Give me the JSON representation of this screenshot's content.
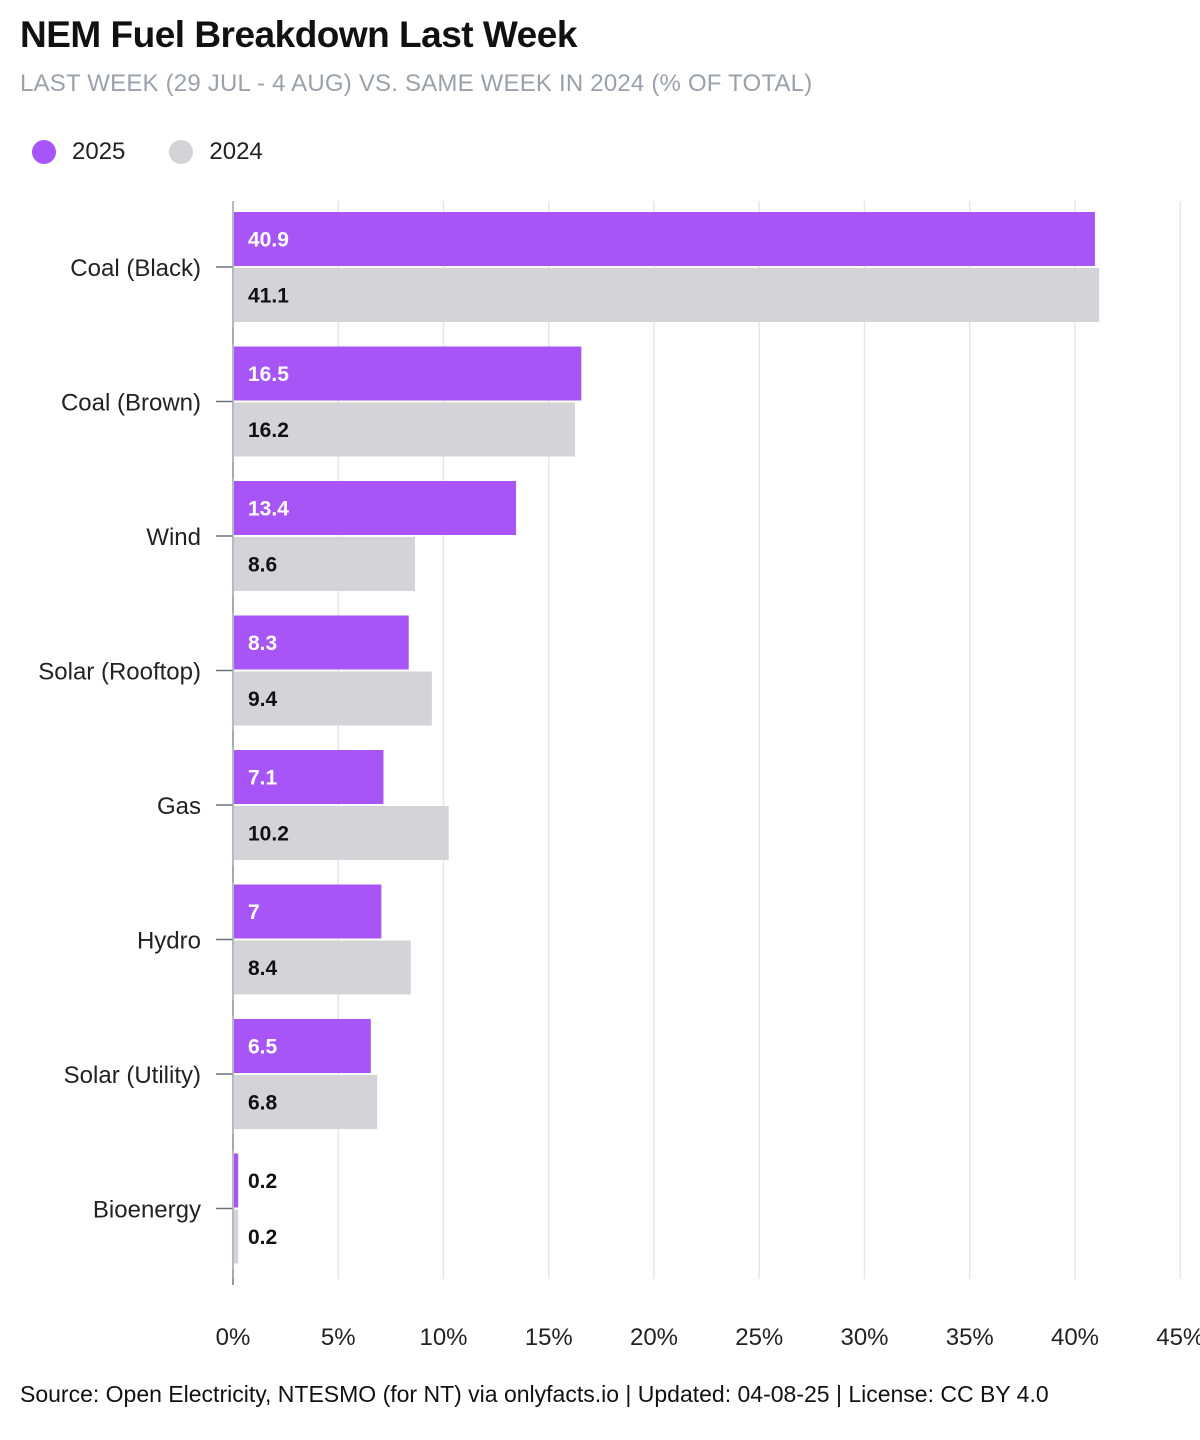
{
  "title": "NEM Fuel Breakdown Last Week",
  "subtitle": "LAST WEEK (29 JUL - 4 AUG) VS. SAME WEEK IN 2024 (% OF TOTAL)",
  "legend": [
    {
      "label": "2025",
      "color": "#a855f7"
    },
    {
      "label": "2024",
      "color": "#d4d4d8"
    }
  ],
  "footer": "Source: Open Electricity, NTESMO (for NT) via onlyfacts.io | Updated: 04-08-25 | License: CC BY 4.0",
  "chart_data": {
    "type": "bar",
    "orientation": "horizontal",
    "categories": [
      "Coal (Black)",
      "Coal (Brown)",
      "Wind",
      "Solar (Rooftop)",
      "Gas",
      "Hydro",
      "Solar (Utility)",
      "Bioenergy"
    ],
    "series": [
      {
        "name": "2025",
        "color": "#a855f7",
        "values": [
          40.9,
          16.5,
          13.4,
          8.3,
          7.1,
          7,
          6.5,
          0.2
        ]
      },
      {
        "name": "2024",
        "color": "#d4d4d8",
        "values": [
          41.1,
          16.2,
          8.6,
          9.4,
          10.2,
          8.4,
          6.8,
          0.2
        ]
      }
    ],
    "xlim": [
      0,
      45
    ],
    "xticks": [
      0,
      5,
      10,
      15,
      20,
      25,
      30,
      35,
      40,
      45
    ],
    "xtick_suffix": "%",
    "grid": true,
    "legend_position": "top-left",
    "data_labels": true
  }
}
